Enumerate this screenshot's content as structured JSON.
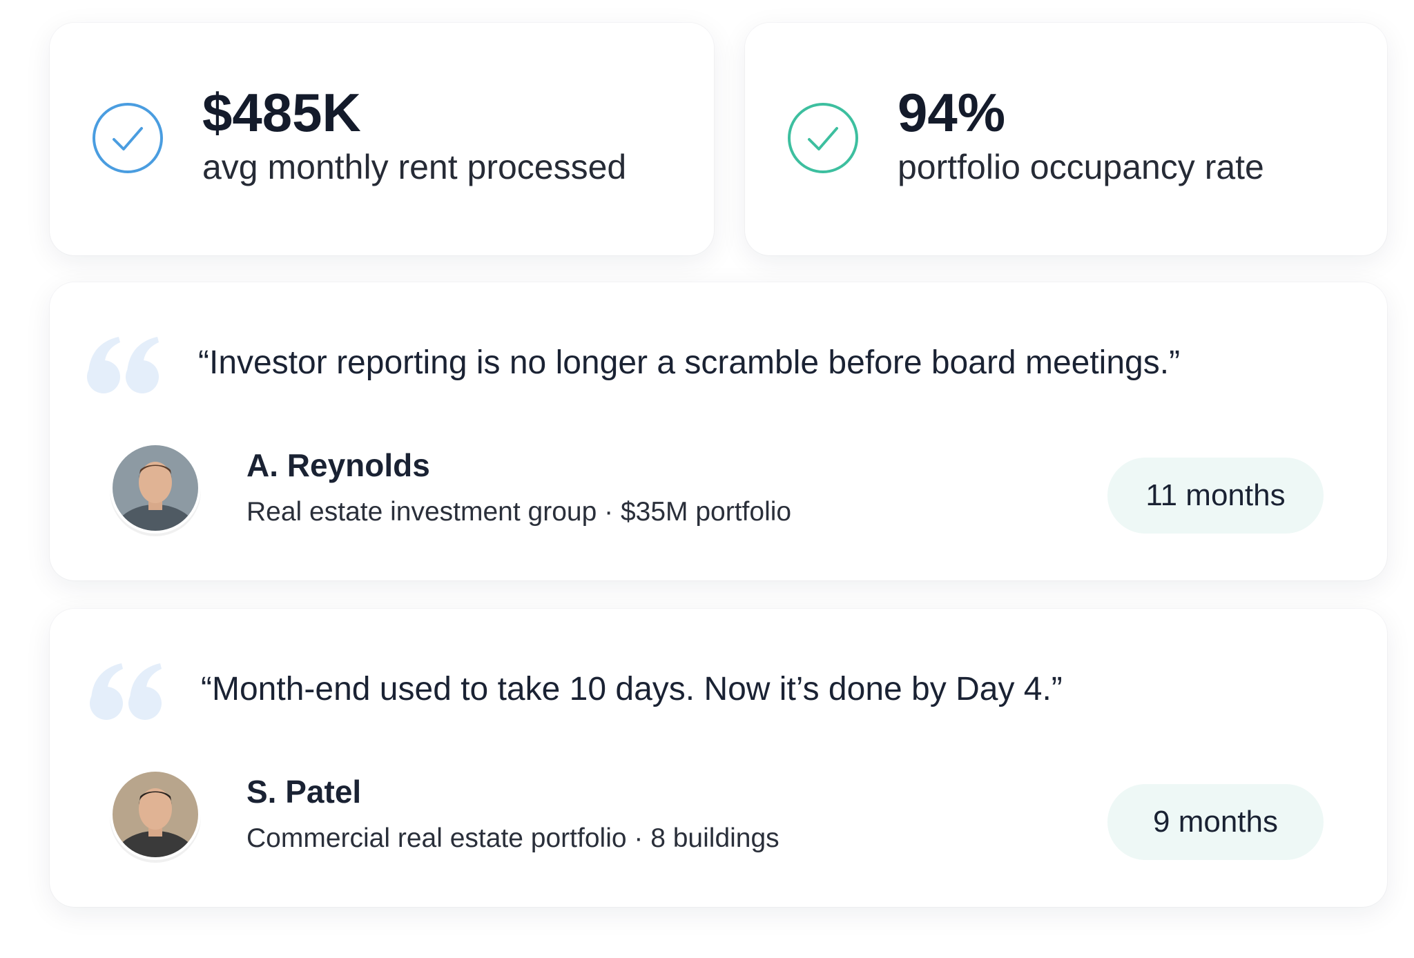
{
  "stats": [
    {
      "value": "$485K",
      "label": "avg monthly rent processed"
    },
    {
      "value": "94%",
      "label": "portfolio occupancy rate"
    }
  ],
  "testimonials": [
    {
      "quote": "“Investor reporting is no longer a scramble before board meetings.”",
      "name": "A. Reynolds",
      "description": "Real estate investment group · $35M portfolio",
      "duration": "11 months"
    },
    {
      "quote": "“Month-end used to take 10 days. Now it’s done by Day 4.”",
      "name": "S. Patel",
      "description": "Commercial real estate portfolio · 8 buildings",
      "duration": "9 months"
    }
  ]
}
